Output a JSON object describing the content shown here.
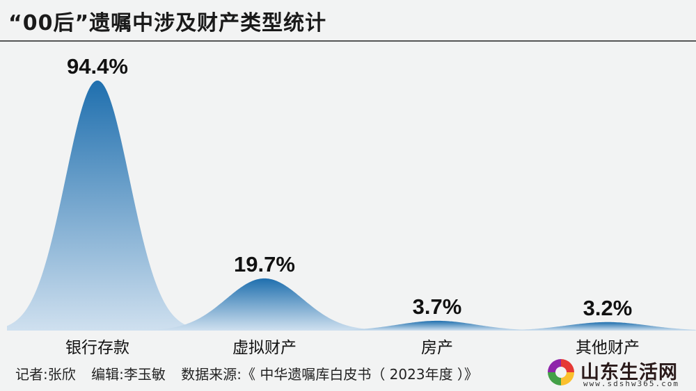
{
  "header": {
    "title": "“00后”遗嘱中涉及财产类型统计"
  },
  "chart_data": {
    "type": "area",
    "categories": [
      "银行存款",
      "虚拟财产",
      "房产",
      "其他财产"
    ],
    "values": [
      94.4,
      19.7,
      3.7,
      3.2
    ],
    "value_labels": [
      "94.4%",
      "19.7%",
      "3.7%",
      "3.2%"
    ],
    "ylim": [
      0,
      100
    ],
    "grid": false,
    "colors": {
      "top": "#1f6fae",
      "bottom": "#cfe0ef"
    }
  },
  "footer": {
    "reporter": "记者:张欣",
    "editor": "编辑:李玉敏",
    "source": "数据来源:《 中华遗嘱库白皮书（ 2023年度 ）》"
  },
  "logo": {
    "name": "山东生活网",
    "url": "www.sdshw365.com"
  }
}
